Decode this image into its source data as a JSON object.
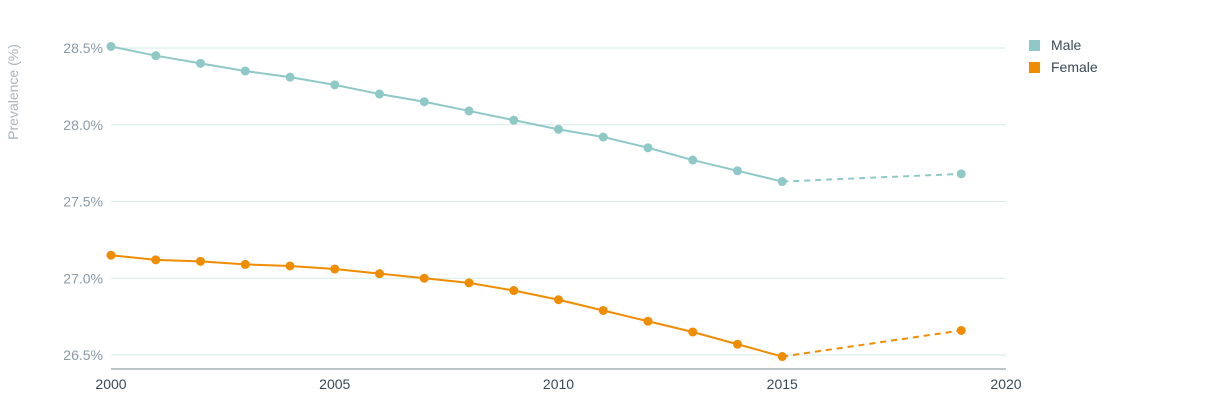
{
  "chart_data": {
    "type": "line",
    "ylabel": "Prevalence (%)",
    "xlim": [
      2000,
      2020
    ],
    "ylim": [
      26.4,
      28.6
    ],
    "xticks": [
      2000,
      2005,
      2010,
      2015,
      2020
    ],
    "yticks": [
      {
        "value": 26.5,
        "label": "26.5%"
      },
      {
        "value": 27.0,
        "label": "27.0%"
      },
      {
        "value": 27.5,
        "label": "27.5%"
      },
      {
        "value": 28.0,
        "label": "28.0%"
      },
      {
        "value": 28.5,
        "label": "28.5%"
      }
    ],
    "grid": true,
    "legend_position": "top-right",
    "series": [
      {
        "name": "Male",
        "color": "#8ec9c7",
        "points": [
          [
            2000,
            28.51
          ],
          [
            2001,
            28.45
          ],
          [
            2002,
            28.4
          ],
          [
            2003,
            28.35
          ],
          [
            2004,
            28.31
          ],
          [
            2005,
            28.26
          ],
          [
            2006,
            28.2
          ],
          [
            2007,
            28.15
          ],
          [
            2008,
            28.09
          ],
          [
            2009,
            28.03
          ],
          [
            2010,
            27.97
          ],
          [
            2011,
            27.92
          ],
          [
            2012,
            27.85
          ],
          [
            2013,
            27.77
          ],
          [
            2014,
            27.7
          ],
          [
            2015,
            27.63
          ]
        ],
        "projection": [
          [
            2015,
            27.63
          ],
          [
            2019,
            27.68
          ]
        ]
      },
      {
        "name": "Female",
        "color": "#ef8c00",
        "points": [
          [
            2000,
            27.15
          ],
          [
            2001,
            27.12
          ],
          [
            2002,
            27.11
          ],
          [
            2003,
            27.09
          ],
          [
            2004,
            27.08
          ],
          [
            2005,
            27.06
          ],
          [
            2006,
            27.03
          ],
          [
            2007,
            27.0
          ],
          [
            2008,
            26.97
          ],
          [
            2009,
            26.92
          ],
          [
            2010,
            26.86
          ],
          [
            2011,
            26.79
          ],
          [
            2012,
            26.72
          ],
          [
            2013,
            26.65
          ],
          [
            2014,
            26.57
          ],
          [
            2015,
            26.49
          ]
        ],
        "projection": [
          [
            2015,
            26.49
          ],
          [
            2019,
            26.66
          ]
        ]
      }
    ]
  }
}
